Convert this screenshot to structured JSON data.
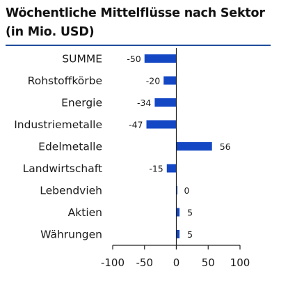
{
  "colors": {
    "bar": "#1447c4",
    "rule": "#1f4e9c",
    "axis": "#222222"
  },
  "chart_data": {
    "type": "bar",
    "orientation": "horizontal",
    "title": "Wöchentliche Mittelflüsse nach Sektor",
    "subtitle": "(in Mio. USD)",
    "categories": [
      "SUMME",
      "Rohstoffkörbe",
      "Energie",
      "Industriemetalle",
      "Edelmetalle",
      "Landwirtschaft",
      "Lebendvieh",
      "Aktien",
      "Währungen"
    ],
    "values": [
      -50,
      -20,
      -34,
      -47,
      56,
      -15,
      0,
      5,
      5
    ],
    "value_labels": [
      "-50",
      "-20",
      "-34",
      "-47",
      "56",
      "-15",
      "0",
      "5",
      "5"
    ],
    "xlim": [
      -100,
      100
    ],
    "xticks": [
      -100,
      -50,
      0,
      50,
      100
    ],
    "xtick_labels": [
      "-100",
      "-50",
      "0",
      "50",
      "100"
    ],
    "grid": false,
    "legend": "none"
  }
}
